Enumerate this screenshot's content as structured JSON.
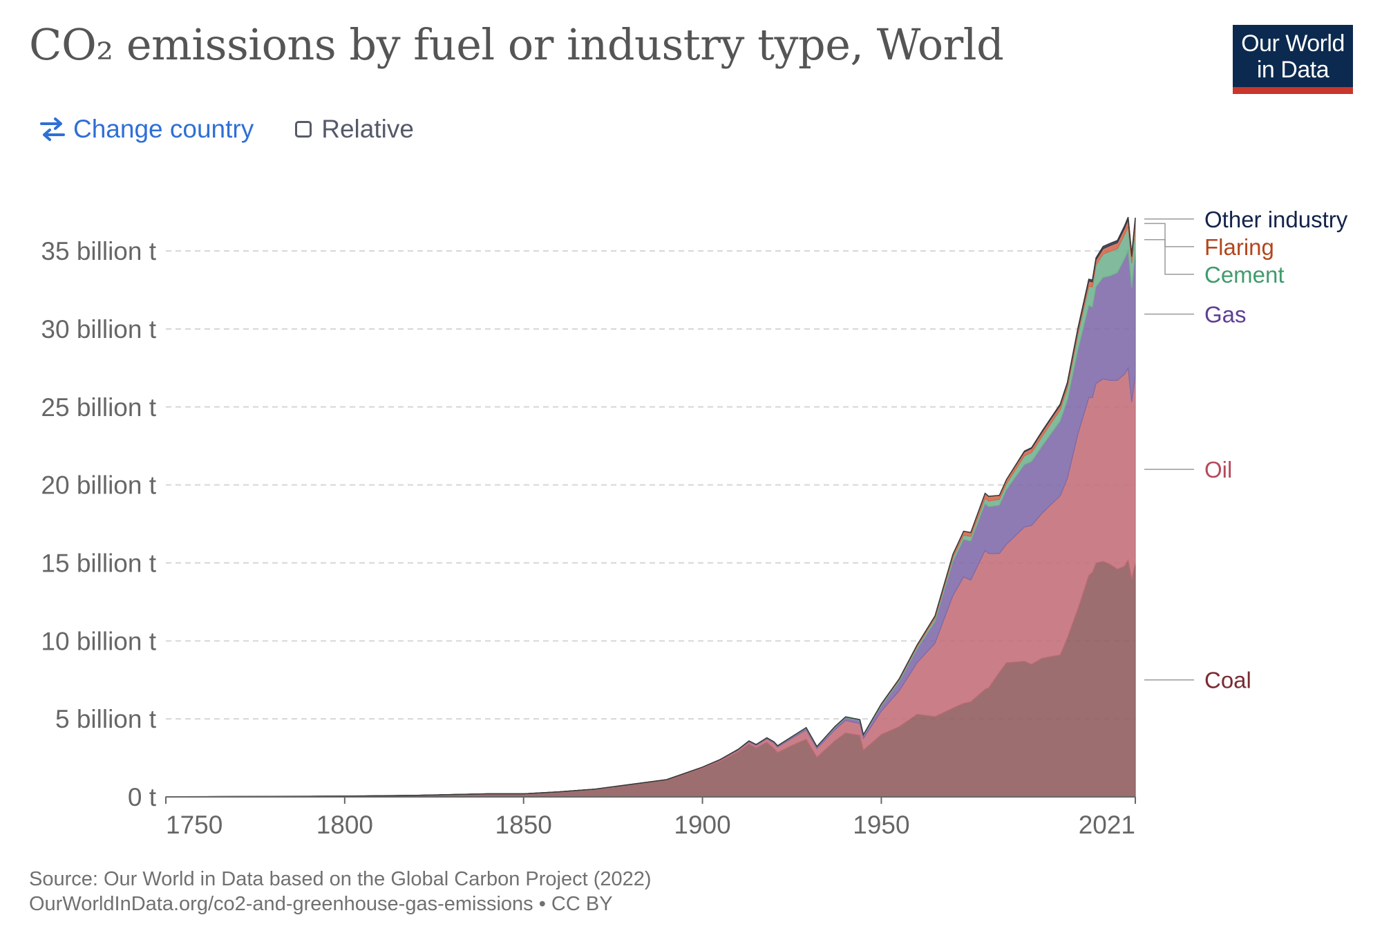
{
  "header": {
    "title": "CO₂ emissions by fuel or industry type, World",
    "logo_line1": "Our World",
    "logo_line2": "in Data"
  },
  "controls": {
    "change_country_label": "Change country",
    "relative_label": "Relative",
    "relative_checked": false
  },
  "footer": {
    "source": "Source: Our World in Data based on the Global Carbon Project (2022)",
    "url_license": "OurWorldInData.org/co2-and-greenhouse-gas-emissions • CC BY"
  },
  "colors": {
    "brand_navy": "#0c2a4f",
    "brand_red": "#c9362c",
    "link_blue": "#2f6fd6"
  },
  "chart_data": {
    "type": "area",
    "stacked": true,
    "title": "CO₂ emissions by fuel or industry type, World",
    "unit": "tonnes",
    "xlim": [
      1750,
      2021
    ],
    "ylim": [
      0,
      37000000000
    ],
    "grid": true,
    "legend_placement": "right",
    "x_ticks": [
      "1750",
      "1800",
      "1850",
      "1900",
      "1950",
      "2021"
    ],
    "y_ticks": [
      "0 t",
      "5 billion t",
      "10 billion t",
      "15 billion t",
      "20 billion t",
      "25 billion t",
      "30 billion t",
      "35 billion t"
    ],
    "x": [
      1750,
      1780,
      1800,
      1820,
      1840,
      1850,
      1860,
      1870,
      1880,
      1890,
      1900,
      1905,
      1910,
      1913,
      1915,
      1918,
      1920,
      1921,
      1925,
      1929,
      1932,
      1937,
      1940,
      1944,
      1945,
      1950,
      1955,
      1960,
      1965,
      1970,
      1973,
      1975,
      1979,
      1980,
      1983,
      1985,
      1990,
      1992,
      1995,
      2000,
      2002,
      2005,
      2008,
      2009,
      2010,
      2012,
      2014,
      2016,
      2018,
      2019,
      2020,
      2021
    ],
    "series": [
      {
        "name": "Coal",
        "color": "#8f5a5c",
        "label_color": "#7a2a32",
        "values": [
          0.01,
          0.03,
          0.05,
          0.1,
          0.2,
          0.2,
          0.33,
          0.5,
          0.8,
          1.1,
          1.85,
          2.3,
          2.9,
          3.4,
          3.15,
          3.5,
          3.1,
          2.85,
          3.3,
          3.7,
          2.55,
          3.6,
          4.1,
          3.95,
          3.0,
          4.0,
          4.5,
          5.3,
          5.15,
          5.7,
          6.0,
          6.1,
          6.9,
          7.0,
          8.0,
          8.6,
          8.7,
          8.5,
          8.9,
          9.1,
          10.2,
          12.1,
          14.2,
          14.4,
          15.0,
          15.1,
          14.9,
          14.6,
          14.8,
          15.2,
          14.0,
          15.0
        ]
      },
      {
        "name": "Oil",
        "color": "#c36d78",
        "label_color": "#b5495a",
        "values": [
          0,
          0,
          0,
          0,
          0,
          0,
          0,
          0,
          0.002,
          0.01,
          0.04,
          0.07,
          0.1,
          0.13,
          0.14,
          0.22,
          0.35,
          0.35,
          0.45,
          0.6,
          0.55,
          0.7,
          0.8,
          0.75,
          0.75,
          1.5,
          2.3,
          3.3,
          4.7,
          7.2,
          8.1,
          7.8,
          8.9,
          8.6,
          7.6,
          7.6,
          8.6,
          8.9,
          9.3,
          10.2,
          10.2,
          11.2,
          11.4,
          11.2,
          11.5,
          11.7,
          11.8,
          12.1,
          12.3,
          12.3,
          11.3,
          12.0
        ]
      },
      {
        "name": "Gas",
        "color": "#7e69a8",
        "label_color": "#5e3f94",
        "values": [
          0,
          0,
          0,
          0,
          0,
          0,
          0,
          0,
          0,
          0,
          0.01,
          0.02,
          0.03,
          0.04,
          0.05,
          0.05,
          0.06,
          0.06,
          0.08,
          0.1,
          0.1,
          0.15,
          0.18,
          0.2,
          0.2,
          0.35,
          0.6,
          0.9,
          1.4,
          2.2,
          2.4,
          2.5,
          3.0,
          3.0,
          3.1,
          3.5,
          4.0,
          4.1,
          4.3,
          4.8,
          5.0,
          5.4,
          5.9,
          5.8,
          6.2,
          6.5,
          6.7,
          6.9,
          7.4,
          7.5,
          7.3,
          7.9
        ]
      },
      {
        "name": "Cement",
        "color": "#6fb08e",
        "label_color": "#3f9b6c",
        "values": [
          0,
          0,
          0,
          0,
          0,
          0,
          0,
          0,
          0,
          0,
          0.01,
          0.01,
          0.02,
          0.02,
          0.02,
          0.02,
          0.02,
          0.02,
          0.03,
          0.04,
          0.03,
          0.05,
          0.05,
          0.05,
          0.04,
          0.07,
          0.1,
          0.14,
          0.2,
          0.25,
          0.28,
          0.3,
          0.36,
          0.37,
          0.38,
          0.4,
          0.57,
          0.59,
          0.64,
          0.73,
          0.8,
          1.0,
          1.25,
          1.3,
          1.4,
          1.5,
          1.58,
          1.55,
          1.57,
          1.6,
          1.62,
          1.65
        ]
      },
      {
        "name": "Flaring",
        "color": "#d2674a",
        "label_color": "#b4461d",
        "values": [
          0,
          0,
          0,
          0,
          0,
          0,
          0,
          0,
          0,
          0,
          0,
          0,
          0,
          0,
          0,
          0,
          0,
          0,
          0,
          0,
          0,
          0,
          0,
          0,
          0,
          0.04,
          0.07,
          0.1,
          0.15,
          0.2,
          0.25,
          0.25,
          0.3,
          0.3,
          0.25,
          0.25,
          0.25,
          0.25,
          0.27,
          0.28,
          0.28,
          0.3,
          0.32,
          0.32,
          0.33,
          0.35,
          0.37,
          0.38,
          0.4,
          0.42,
          0.41,
          0.42
        ]
      },
      {
        "name": "Other industry",
        "color": "#2b3a5a",
        "label_color": "#14234a",
        "values": [
          0,
          0,
          0,
          0,
          0,
          0,
          0,
          0,
          0,
          0,
          0,
          0,
          0,
          0,
          0,
          0,
          0,
          0,
          0,
          0,
          0,
          0,
          0,
          0,
          0,
          0,
          0,
          0,
          0,
          0,
          0,
          0,
          0,
          0,
          0,
          0,
          0.05,
          0.05,
          0.06,
          0.07,
          0.08,
          0.1,
          0.12,
          0.12,
          0.13,
          0.14,
          0.14,
          0.14,
          0.15,
          0.15,
          0.15,
          0.16
        ]
      }
    ]
  }
}
